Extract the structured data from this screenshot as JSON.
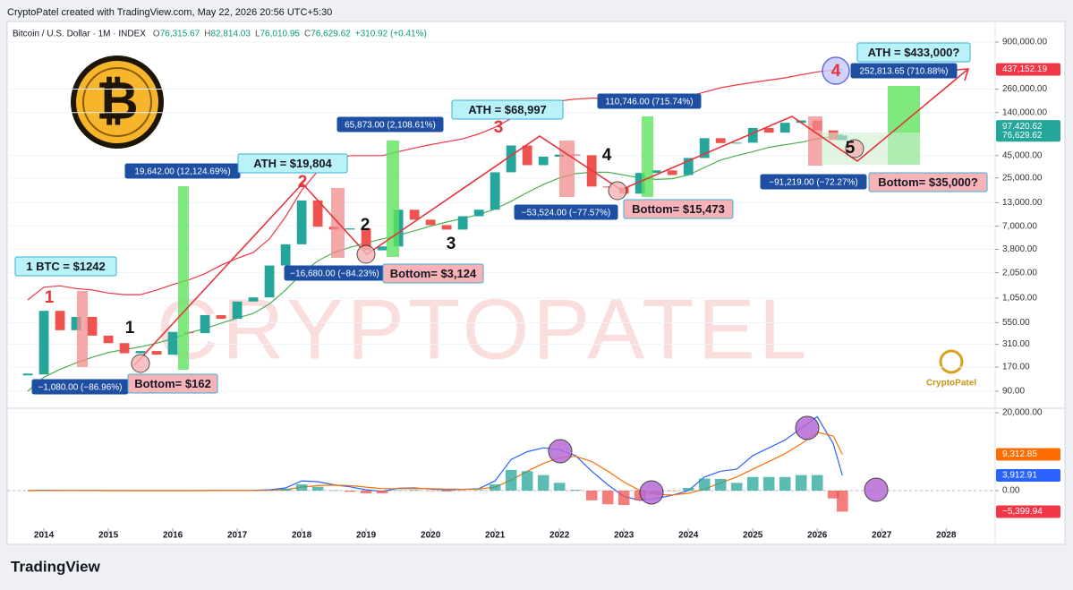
{
  "header": {
    "credit": "CryptoPatel created with TradingView.com, May 22, 2026 20:56 UTC+5:30",
    "symbol": "Bitcoin / U.S. Dollar · 1M · INDEX",
    "ohlc": [
      "O",
      "76,315.67",
      "H",
      "82,814.03",
      "L",
      "76,010.95",
      "C",
      "76,629.62",
      "+310.92 (+0.41%)"
    ]
  },
  "chart_data": [
    {
      "type": "candlestick",
      "x": [
        2013.75,
        2014,
        2014.25,
        2014.5,
        2014.75,
        2015,
        2015.25,
        2015.5,
        2015.75,
        2016,
        2016.25,
        2016.5,
        2016.75,
        2017,
        2017.25,
        2017.5,
        2017.75,
        2018,
        2018.25,
        2018.5,
        2018.75,
        2019,
        2019.25,
        2019.5,
        2019.75,
        2020,
        2020.25,
        2020.5,
        2020.75,
        2021,
        2021.25,
        2021.5,
        2021.75,
        2022,
        2022.25,
        2022.5,
        2022.75,
        2023,
        2023.25,
        2023.5,
        2023.75,
        2024,
        2024.25,
        2024.5,
        2024.75,
        2025,
        2025.25,
        2025.5,
        2025.75,
        2026,
        2026.25,
        2026.39
      ],
      "up_color": "#26a69a",
      "down_color": "#ef5350",
      "series": [
        {
          "values": [
            140,
            750,
            450,
            640,
            390,
            320,
            245,
            260,
            236,
            430,
            416,
            670,
            608,
            960,
            1070,
            2480,
            4340,
            13800,
            6900,
            6400,
            6600,
            3700,
            4100,
            10800,
            8300,
            7200,
            6400,
            9100,
            10800,
            29000,
            58800,
            35000,
            43800,
            46300,
            45500,
            19900,
            19400,
            16500,
            28500,
            30500,
            27000,
            42300,
            71300,
            62700,
            63300,
            93400,
            82500,
            107000,
            114000,
            87500,
            68000,
            76629.62
          ]
        },
        {
          "color": "#f23645",
          "values": [
            1000,
            1400,
            1450,
            1350,
            1300,
            1200,
            1150,
            1150,
            1300,
            1500,
            1700,
            2000,
            2500,
            3000,
            3500,
            5000,
            9000,
            18000,
            30000,
            40000,
            45000,
            45000,
            45000,
            50000,
            55000,
            60000,
            65000,
            70000,
            80000,
            95000,
            120000,
            150000,
            170000,
            190000,
            200000,
            205000,
            205000,
            200000,
            200000,
            200000,
            205000,
            215000,
            240000,
            270000,
            290000,
            310000,
            330000,
            350000,
            380000,
            410000,
            430000,
            437152.19
          ]
        },
        {
          "color": "#4caf50",
          "values": [
            90,
            130,
            160,
            190,
            220,
            250,
            270,
            290,
            320,
            360,
            420,
            470,
            540,
            620,
            700,
            900,
            1300,
            2000,
            2800,
            3500,
            4000,
            4500,
            5000,
            5500,
            6200,
            7000,
            7800,
            8600,
            9500,
            11000,
            13500,
            17000,
            21000,
            25000,
            28000,
            29000,
            29000,
            27000,
            25000,
            24000,
            24500,
            27000,
            33000,
            40000,
            45000,
            50000,
            56000,
            60000,
            64000,
            70000,
            75000,
            78000
          ]
        }
      ],
      "log_scale": true,
      "xlim": [
        2013.43,
        2028.76
      ],
      "xticks": [
        2014,
        2015,
        2016,
        2017,
        2018,
        2019,
        2020,
        2021,
        2022,
        2023,
        2024,
        2025,
        2026,
        2027,
        2028
      ],
      "ylim": [
        58.8,
        1476900
      ],
      "yticks": [
        {
          "value": 900000,
          "label": "900,000.00"
        },
        {
          "value": 260000,
          "label": "260,000.00"
        },
        {
          "value": 140000,
          "label": "140,000.00"
        },
        {
          "value": 45000,
          "label": "45,000.00"
        },
        {
          "value": 25000,
          "label": "25,000.00"
        },
        {
          "value": 13000,
          "label": "13,000.00"
        },
        {
          "value": 7000,
          "label": "7,000.00"
        },
        {
          "value": 3800,
          "label": "3,800.00"
        },
        {
          "value": 2050,
          "label": "2,050.00"
        },
        {
          "value": 1050,
          "label": "1,050.00"
        },
        {
          "value": 550,
          "label": "550.00"
        },
        {
          "value": 310,
          "label": "310.00"
        },
        {
          "value": 170,
          "label": "170.00"
        },
        {
          "value": 90,
          "label": "90.00"
        }
      ],
      "price_labels": [
        {
          "value": 437152.19,
          "label": "437,152.19",
          "color": "#f23645"
        },
        {
          "value": 97420.62,
          "label": "97,420.62",
          "color": "#26a69a"
        },
        {
          "value": 76629.62,
          "label": "76,629.62",
          "color": "#26a69a"
        }
      ]
    },
    {
      "type": "macd",
      "x": [
        2013.75,
        2014,
        2014.25,
        2014.5,
        2014.75,
        2015,
        2015.25,
        2015.5,
        2015.75,
        2016,
        2016.25,
        2016.5,
        2016.75,
        2017,
        2017.25,
        2017.5,
        2017.75,
        2018,
        2018.25,
        2018.5,
        2018.75,
        2019,
        2019.25,
        2019.5,
        2019.75,
        2020,
        2020.25,
        2020.5,
        2020.75,
        2021,
        2021.25,
        2021.5,
        2021.75,
        2022,
        2022.25,
        2022.5,
        2022.75,
        2023,
        2023.25,
        2023.5,
        2023.75,
        2024,
        2024.25,
        2024.5,
        2024.75,
        2025,
        2025.25,
        2025.5,
        2025.75,
        2026,
        2026.25,
        2026.39
      ],
      "series": [
        {
          "color": "#2962ff",
          "values": [
            0,
            100,
            50,
            40,
            20,
            0,
            -10,
            -10,
            -5,
            0,
            10,
            20,
            30,
            50,
            80,
            200,
            700,
            2500,
            2300,
            1500,
            1000,
            200,
            -200,
            600,
            700,
            400,
            200,
            300,
            500,
            2500,
            8000,
            10000,
            11000,
            10500,
            9000,
            5000,
            1500,
            -1500,
            -2500,
            -2000,
            -1200,
            0,
            3500,
            5000,
            5500,
            9000,
            11000,
            13000,
            16000,
            19000,
            12000,
            3912.91
          ]
        },
        {
          "color": "#ff6d00",
          "values": [
            0,
            30,
            40,
            40,
            35,
            25,
            15,
            8,
            3,
            1,
            4,
            10,
            16,
            25,
            40,
            80,
            250,
            900,
            1300,
            1400,
            1300,
            900,
            500,
            500,
            550,
            500,
            400,
            350,
            380,
            900,
            2700,
            5000,
            7000,
            8500,
            8800,
            7500,
            5000,
            2200,
            0,
            -1000,
            -1100,
            -700,
            400,
            2000,
            3500,
            5500,
            7500,
            9500,
            12000,
            15000,
            14000,
            9312.85
          ]
        },
        {
          "type": "bar",
          "up_color": "#26a69a",
          "down_color": "#ef5350",
          "values": [
            0,
            70,
            10,
            0,
            -15,
            -25,
            -25,
            -18,
            -8,
            -1,
            6,
            10,
            14,
            25,
            40,
            120,
            450,
            1600,
            1000,
            100,
            -300,
            -700,
            -700,
            100,
            150,
            -100,
            -200,
            -50,
            120,
            1600,
            5300,
            5000,
            4000,
            2000,
            200,
            -2500,
            -3500,
            -3700,
            -2500,
            -1000,
            -100,
            700,
            3100,
            3000,
            2000,
            3500,
            3500,
            3500,
            4000,
            4000,
            -2000,
            -5399.94
          ]
        }
      ],
      "xlim": [
        2013.43,
        2028.76
      ],
      "ylim": [
        -9195,
        20920
      ],
      "yticks": [
        {
          "value": 20000,
          "label": "20,000.00"
        },
        {
          "value": 0,
          "label": "0.00"
        }
      ],
      "price_labels": [
        {
          "value": 9312.85,
          "label": "9,312.85",
          "color": "#ff6d00"
        },
        {
          "value": 3912.91,
          "label": "3,912.91",
          "color": "#2962ff"
        },
        {
          "value": -5399.94,
          "label": "−5,399.94",
          "color": "#f23645"
        }
      ]
    }
  ],
  "annotations": [
    "1 BTC = $1242",
    "−1,080.00 (−86.96%)",
    "Bottom= $162",
    "19,642.00 (12,124.69%)",
    "ATH = $19,804",
    "−16,680.00 (−84.23%)",
    "Bottom= $3,124",
    "65,873.00 (2,108.61%)",
    "ATH = $68,997",
    "−53,524.00 (−77.57%)",
    "Bottom= $15,473",
    "110,746.00 (715.74%)",
    "ATH = $433,000?",
    "252,813.65 (710.88%)",
    "−91,219.00 (−72.27%)",
    "Bottom= $35,000?"
  ],
  "cycle_marks": [
    "1",
    "2",
    "3",
    "4",
    "1",
    "2",
    "3",
    "4",
    "5"
  ],
  "watermark": "CRYPTOPATEL",
  "logo_text": "CryptoPatel",
  "footer": "TradingView"
}
